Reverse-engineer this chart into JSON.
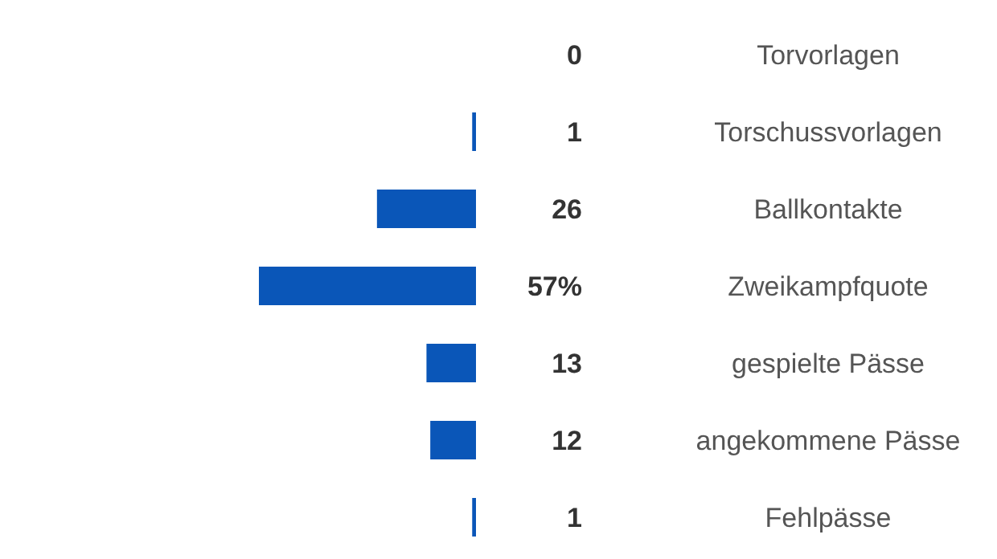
{
  "chart_data": {
    "type": "bar",
    "orientation": "horizontal",
    "categories": [
      "Torvorlagen",
      "Torschussvorlagen",
      "Ballkontakte",
      "Zweikampfquote",
      "gespielte Pässe",
      "angekommene Pässe",
      "Fehlpässe"
    ],
    "values": [
      0,
      1,
      26,
      57,
      13,
      12,
      1
    ],
    "value_labels": [
      "0",
      "1",
      "26",
      "57%",
      "13",
      "12",
      "1"
    ],
    "color": "#0a56b8"
  }
}
